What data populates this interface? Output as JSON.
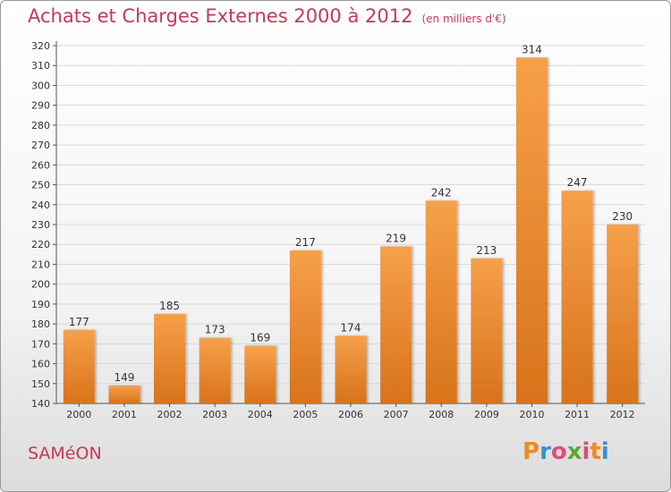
{
  "header": {
    "title": "Achats et Charges Externes 2000 à 2012",
    "subtitle": "(en milliers d'€)"
  },
  "footer": {
    "city": "SAMéON",
    "brand": "Proxiti",
    "brand_colors": [
      "#f08a1c",
      "#3a8fd1",
      "#e04e7a",
      "#5aa832",
      "#e04e7a",
      "#f08a1c",
      "#3a8fd1"
    ]
  },
  "chart_data": {
    "type": "bar",
    "categories": [
      "2000",
      "2001",
      "2002",
      "2003",
      "2004",
      "2005",
      "2006",
      "2007",
      "2008",
      "2009",
      "2010",
      "2011",
      "2012"
    ],
    "values": [
      177,
      149,
      185,
      173,
      169,
      217,
      174,
      219,
      242,
      213,
      314,
      247,
      230
    ],
    "ylim": [
      140,
      320
    ],
    "ytick_step": 10,
    "grid": true,
    "bar_color_light": "#f6a04a",
    "bar_color_dark": "#d8731a"
  }
}
